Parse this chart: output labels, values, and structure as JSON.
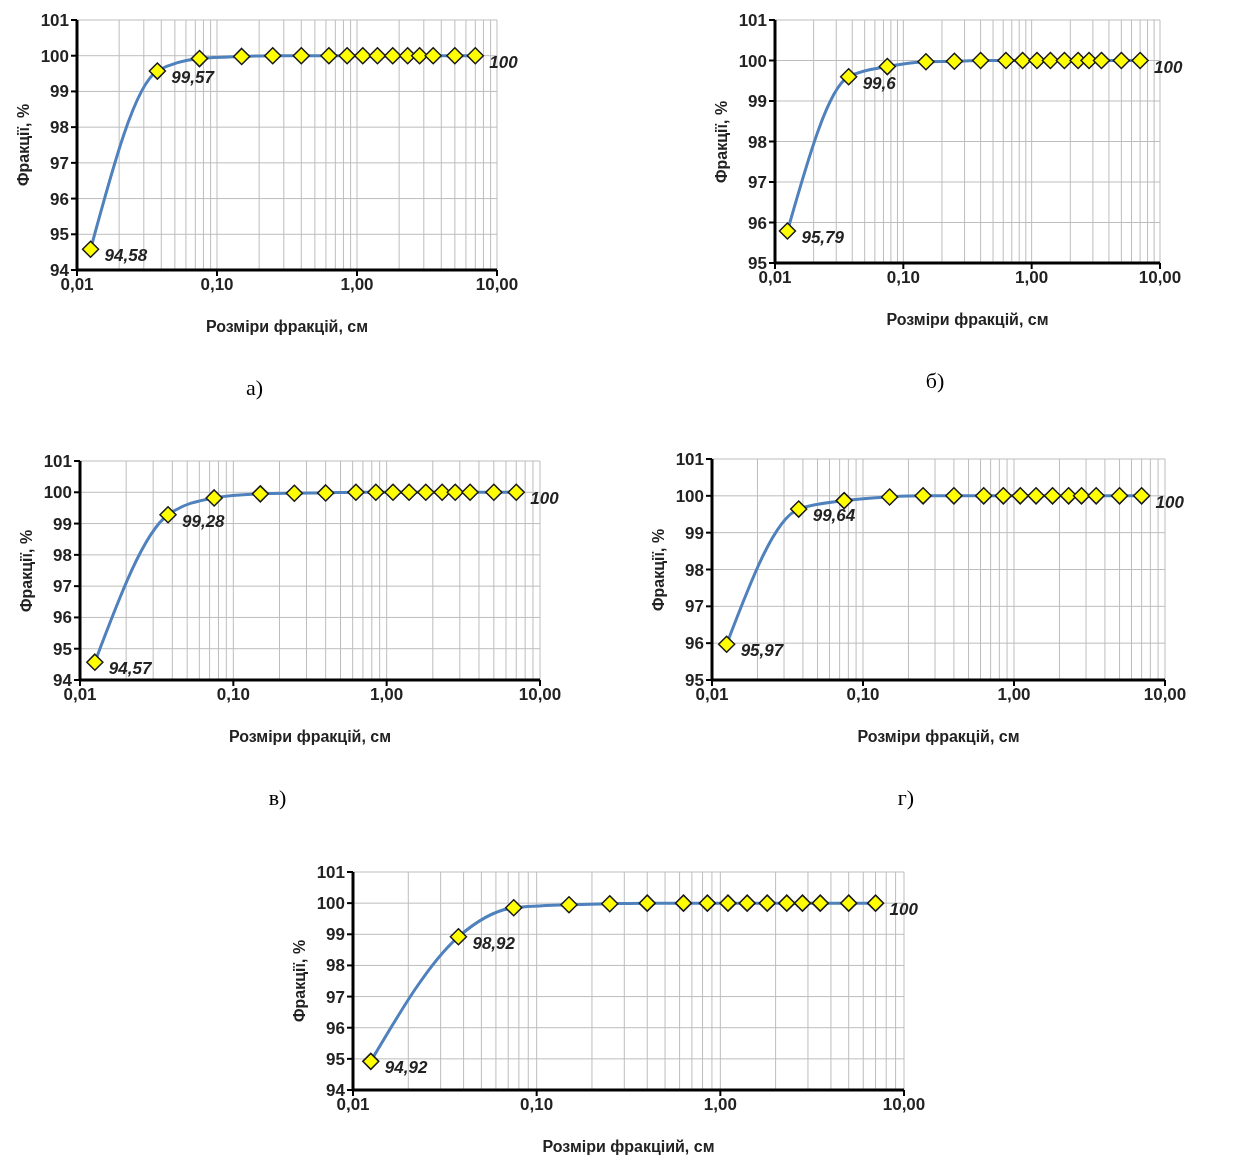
{
  "chart_data": [
    {
      "type": "line",
      "xlabel": "Розміри фракцій, см",
      "ylabel": "Фракції, %",
      "log": "x",
      "grid": true,
      "marker": "diamond",
      "xlim": [
        0.01,
        10
      ],
      "xticks": [
        {
          "value": 0.01,
          "label": "0,01"
        },
        {
          "value": 0.1,
          "label": "0,10"
        },
        {
          "value": 1,
          "label": "1,00"
        },
        {
          "value": 10,
          "label": "10,00"
        }
      ],
      "ylim": [
        94,
        101
      ],
      "yticks": [
        94,
        95,
        96,
        97,
        98,
        99,
        100,
        101
      ],
      "x": [
        0.0125,
        0.0375,
        0.075,
        0.15,
        0.25,
        0.4,
        0.63,
        0.85,
        1.1,
        1.4,
        1.8,
        2.3,
        2.8,
        3.5,
        5,
        7
      ],
      "annotations": [
        "а)"
      ],
      "series": [
        {
          "color": "#4f81bd",
          "colors": [
            "#ffff00",
            "#ffff00",
            "#ffff00",
            "#ffff00",
            "#ffff00",
            "#ffff00",
            "#ffff00",
            "#ffff00",
            "#ffff00",
            "#ffff00",
            "#ffff00",
            "#ffff00",
            "#ffff00",
            "#ffff00",
            "#ffff00",
            "#ffff00"
          ],
          "values": [
            94.58,
            99.57,
            99.92,
            99.98,
            100,
            100,
            100,
            100,
            100,
            100,
            100,
            100,
            100,
            100,
            100,
            100
          ],
          "value_labels": [
            "94,58",
            "99,57",
            null,
            null,
            null,
            null,
            null,
            null,
            null,
            null,
            null,
            null,
            null,
            null,
            null,
            "100"
          ]
        }
      ]
    },
    {
      "type": "line",
      "xlabel": "Розміри фракцій, см",
      "ylabel": "Фракції, %",
      "log": "x",
      "grid": true,
      "marker": "diamond",
      "xlim": [
        0.01,
        10
      ],
      "xticks": [
        {
          "value": 0.01,
          "label": "0,01"
        },
        {
          "value": 0.1,
          "label": "0,10"
        },
        {
          "value": 1,
          "label": "1,00"
        },
        {
          "value": 10,
          "label": "10,00"
        }
      ],
      "ylim": [
        95,
        101
      ],
      "yticks": [
        95,
        96,
        97,
        98,
        99,
        100,
        101
      ],
      "x": [
        0.0125,
        0.0375,
        0.075,
        0.15,
        0.25,
        0.4,
        0.63,
        0.85,
        1.1,
        1.4,
        1.8,
        2.3,
        2.8,
        3.5,
        5,
        7
      ],
      "annotations": [
        "б)"
      ],
      "series": [
        {
          "color": "#4f81bd",
          "colors": [
            "#ffff00",
            "#ffff00",
            "#ffff00",
            "#ffff00",
            "#ffff00",
            "#ffff00",
            "#ffff00",
            "#ffff00",
            "#ffff00",
            "#ffff00",
            "#ffff00",
            "#ffff00",
            "#ffff00",
            "#ffff00",
            "#ffff00",
            "#ffff00"
          ],
          "values": [
            95.79,
            99.6,
            99.85,
            99.97,
            99.98,
            100,
            100,
            100,
            100,
            100,
            100,
            100,
            100,
            100,
            100,
            100
          ],
          "value_labels": [
            "95,79",
            "99,6",
            null,
            null,
            null,
            null,
            null,
            null,
            null,
            null,
            null,
            null,
            null,
            null,
            null,
            "100"
          ]
        }
      ]
    },
    {
      "type": "line",
      "xlabel": "Розміри фракцій, см",
      "ylabel": "Фракції, %",
      "log": "x",
      "grid": true,
      "marker": "diamond",
      "xlim": [
        0.01,
        10
      ],
      "xticks": [
        {
          "value": 0.01,
          "label": "0,01"
        },
        {
          "value": 0.1,
          "label": "0,10"
        },
        {
          "value": 1,
          "label": "1,00"
        },
        {
          "value": 10,
          "label": "10,00"
        }
      ],
      "ylim": [
        94,
        101
      ],
      "yticks": [
        94,
        95,
        96,
        97,
        98,
        99,
        100,
        101
      ],
      "x": [
        0.0125,
        0.0375,
        0.075,
        0.15,
        0.25,
        0.4,
        0.63,
        0.85,
        1.1,
        1.4,
        1.8,
        2.3,
        2.8,
        3.5,
        5,
        7
      ],
      "annotations": [
        "в)"
      ],
      "series": [
        {
          "color": "#4f81bd",
          "colors": [
            "#ffff00",
            "#ffff00",
            "#ffff00",
            "#ffff00",
            "#ffff00",
            "#ffff00",
            "#ffff00",
            "#ffff00",
            "#ffff00",
            "#ffff00",
            "#ffff00",
            "#ffff00",
            "#ffff00",
            "#ffff00",
            "#ffff00",
            "#ffff00"
          ],
          "values": [
            94.57,
            99.28,
            99.82,
            99.95,
            99.97,
            99.98,
            100,
            100,
            100,
            100,
            100,
            100,
            100,
            100,
            100,
            100
          ],
          "value_labels": [
            "94,57",
            "99,28",
            null,
            null,
            null,
            null,
            null,
            null,
            null,
            null,
            null,
            null,
            null,
            null,
            null,
            "100"
          ]
        }
      ]
    },
    {
      "type": "line",
      "xlabel": "Розміри фракцій, см",
      "ylabel": "Фракції, %",
      "log": "x",
      "grid": true,
      "marker": "diamond",
      "xlim": [
        0.01,
        10
      ],
      "xticks": [
        {
          "value": 0.01,
          "label": "0,01"
        },
        {
          "value": 0.1,
          "label": "0,10"
        },
        {
          "value": 1,
          "label": "1,00"
        },
        {
          "value": 10,
          "label": "10,00"
        }
      ],
      "ylim": [
        95,
        101
      ],
      "yticks": [
        95,
        96,
        97,
        98,
        99,
        100,
        101
      ],
      "x": [
        0.0125,
        0.0375,
        0.075,
        0.15,
        0.25,
        0.4,
        0.63,
        0.85,
        1.1,
        1.4,
        1.8,
        2.3,
        2.8,
        3.5,
        5,
        7
      ],
      "annotations": [
        "г)"
      ],
      "series": [
        {
          "color": "#4f81bd",
          "colors": [
            "#ffff00",
            "#ffff00",
            "#ffff00",
            "#ffff00",
            "#ffff00",
            "#ffff00",
            "#ffff00",
            "#ffff00",
            "#ffff00",
            "#ffff00",
            "#ffff00",
            "#ffff00",
            "#ffff00",
            "#ffff00",
            "#ffff00",
            "#ffff00"
          ],
          "values": [
            95.97,
            99.64,
            99.87,
            99.97,
            100,
            100,
            100,
            100,
            100,
            100,
            100,
            100,
            100,
            100,
            100,
            100
          ],
          "value_labels": [
            "95,97",
            "99,64",
            null,
            null,
            null,
            null,
            null,
            null,
            null,
            null,
            null,
            null,
            null,
            null,
            null,
            "100"
          ]
        }
      ]
    },
    {
      "type": "line",
      "xlabel": "Розміри фракціий, см",
      "ylabel": "Фракції, %",
      "log": "x",
      "grid": true,
      "marker": "diamond",
      "xlim": [
        0.01,
        10
      ],
      "xticks": [
        {
          "value": 0.01,
          "label": "0,01"
        },
        {
          "value": 0.1,
          "label": "0,10"
        },
        {
          "value": 1,
          "label": "1,00"
        },
        {
          "value": 10,
          "label": "10,00"
        }
      ],
      "ylim": [
        94,
        101
      ],
      "yticks": [
        94,
        95,
        96,
        97,
        98,
        99,
        100,
        101
      ],
      "x": [
        0.0125,
        0.0375,
        0.075,
        0.15,
        0.25,
        0.4,
        0.63,
        0.85,
        1.1,
        1.4,
        1.8,
        2.3,
        2.8,
        3.5,
        5,
        7
      ],
      "series": [
        {
          "color": "#4f81bd",
          "colors": [
            "#ffff00",
            "#ffff00",
            "#ffff00",
            "#ffff00",
            "#ffff00",
            "#ffff00",
            "#ffff00",
            "#ffff00",
            "#ffff00",
            "#ffff00",
            "#ffff00",
            "#ffff00",
            "#ffff00",
            "#ffff00",
            "#ffff00",
            "#ffff00"
          ],
          "values": [
            94.92,
            98.92,
            99.85,
            99.95,
            99.98,
            100,
            100,
            100,
            100,
            100,
            100,
            100,
            100,
            100,
            100,
            100
          ],
          "value_labels": [
            "94,92",
            "98,92",
            null,
            null,
            null,
            null,
            null,
            null,
            null,
            null,
            null,
            null,
            null,
            null,
            null,
            "100"
          ]
        }
      ]
    }
  ]
}
